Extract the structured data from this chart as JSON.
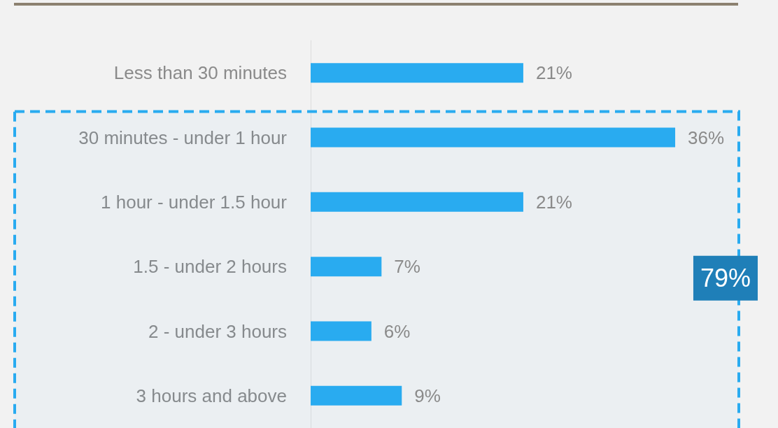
{
  "chart_data": {
    "type": "bar",
    "orientation": "horizontal",
    "categories": [
      "Less than 30 minutes",
      "30 minutes - under 1 hour",
      "1 hour - under 1.5 hour",
      "1.5 - under 2 hours",
      "2 - under 3 hours",
      "3 hours and above"
    ],
    "values": [
      21,
      36,
      21,
      7,
      6,
      9
    ],
    "value_labels": [
      "21%",
      "36%",
      "21%",
      "7%",
      "6%",
      "9%"
    ],
    "color": "#29abf0",
    "bands": [
      {
        "axis": "y",
        "from": "30 minutes - under 1 hour",
        "to": "3 hours and above",
        "label": "79%",
        "color": "#29abf0"
      }
    ]
  }
}
